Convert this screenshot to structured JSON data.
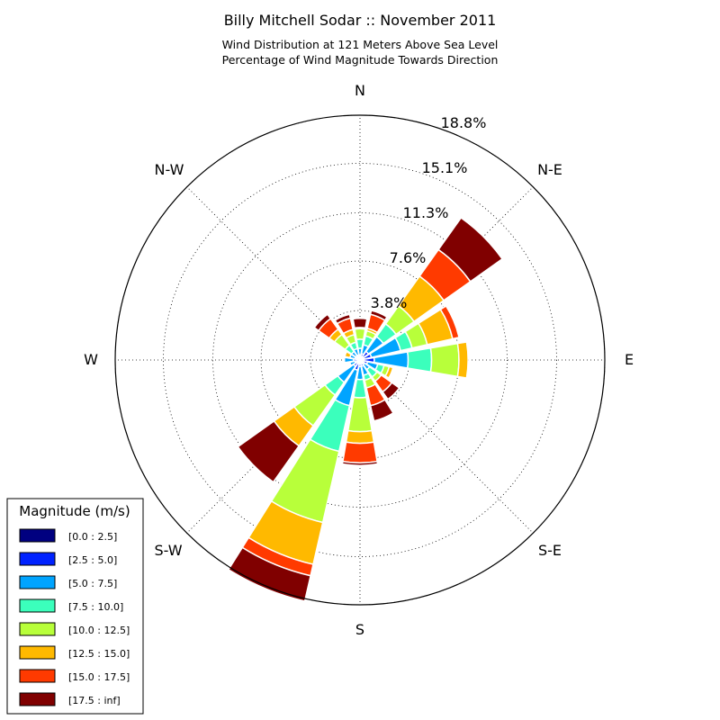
{
  "chart_data": {
    "type": "windrose",
    "title": "Billy Mitchell Sodar :: November 2011",
    "subtitle_lines": [
      "Wind Distribution at 121 Meters Above Sea Level",
      "Percentage of Wind Magnitude Towards Direction"
    ],
    "directions": [
      "N",
      "N-E",
      "E",
      "S-E",
      "S",
      "S-W",
      "W",
      "N-W"
    ],
    "ring_labels": [
      "3.8%",
      "7.6%",
      "11.3%",
      "15.1%",
      "18.8%"
    ],
    "rmax": 18.8,
    "legend": {
      "title": "Magnitude (m/s)",
      "bins": [
        {
          "label": "[0.0 : 2.5]",
          "color": "#000080"
        },
        {
          "label": "[2.5 : 5.0]",
          "color": "#0022ff"
        },
        {
          "label": "[5.0 : 7.5]",
          "color": "#00a4ff"
        },
        {
          "label": "[7.5 : 10.0]",
          "color": "#3bffbc"
        },
        {
          "label": "[10.0 : 12.5]",
          "color": "#b8ff3a"
        },
        {
          "label": "[12.5 : 15.0]",
          "color": "#ffb900"
        },
        {
          "label": "[15.0 : 17.5]",
          "color": "#ff3a00"
        },
        {
          "label": "[17.5 : inf]",
          "color": "#800000"
        }
      ]
    },
    "sectors": [
      {
        "dir": 0,
        "cum": [
          0.2,
          0.4,
          0.9,
          1.6,
          2.4,
          2.5,
          2.5,
          3.2
        ]
      },
      {
        "dir": 22.5,
        "cum": [
          0.2,
          0.5,
          1.2,
          1.9,
          2.3,
          2.5,
          3.6,
          3.9
        ]
      },
      {
        "dir": 45,
        "cum": [
          0.3,
          0.8,
          2.2,
          3.4,
          5.1,
          7.9,
          10.4,
          13.4
        ]
      },
      {
        "dir": 67.5,
        "cum": [
          0.3,
          0.9,
          3.2,
          4.1,
          5.3,
          7.3,
          7.8,
          7.8
        ]
      },
      {
        "dir": 90,
        "cum": [
          0.3,
          1.1,
          3.7,
          5.5,
          7.6,
          8.3,
          8.3,
          8.3
        ]
      },
      {
        "dir": 112.5,
        "cum": [
          0.2,
          0.6,
          1.4,
          1.9,
          2.3,
          2.6,
          2.6,
          2.6
        ]
      },
      {
        "dir": 135,
        "cum": [
          0.2,
          0.4,
          0.9,
          1.6,
          2.0,
          2.0,
          3.0,
          3.7
        ]
      },
      {
        "dir": 157.5,
        "cum": [
          0.2,
          0.5,
          1.2,
          1.6,
          2.2,
          2.2,
          3.6,
          4.8
        ]
      },
      {
        "dir": 180,
        "cum": [
          0.2,
          0.5,
          1.5,
          2.9,
          5.5,
          6.4,
          7.9,
          8.1
        ]
      },
      {
        "dir": 202.5,
        "cum": [
          0.3,
          0.8,
          3.6,
          7.2,
          12.8,
          16.1,
          17.0,
          19.0
        ]
      },
      {
        "dir": 225,
        "cum": [
          0.2,
          0.6,
          2.1,
          3.3,
          6.2,
          8.1,
          8.1,
          11.5
        ]
      },
      {
        "dir": 247.5,
        "cum": [
          0.2,
          0.4,
          0.8,
          0.8,
          0.8,
          0.8,
          0.8,
          0.8
        ]
      },
      {
        "dir": 270,
        "cum": [
          0.2,
          0.5,
          1.2,
          1.3,
          1.3,
          1.3,
          1.3,
          1.3
        ]
      },
      {
        "dir": 292.5,
        "cum": [
          0.2,
          0.4,
          0.8,
          0.8,
          0.8,
          1.2,
          1.2,
          1.2
        ]
      },
      {
        "dir": 315,
        "cum": [
          0.2,
          0.4,
          0.8,
          1.4,
          2.4,
          2.9,
          3.9,
          4.3
        ]
      },
      {
        "dir": 337.5,
        "cum": [
          0.2,
          0.4,
          0.9,
          1.4,
          2.0,
          2.4,
          3.3,
          3.6
        ]
      }
    ]
  }
}
